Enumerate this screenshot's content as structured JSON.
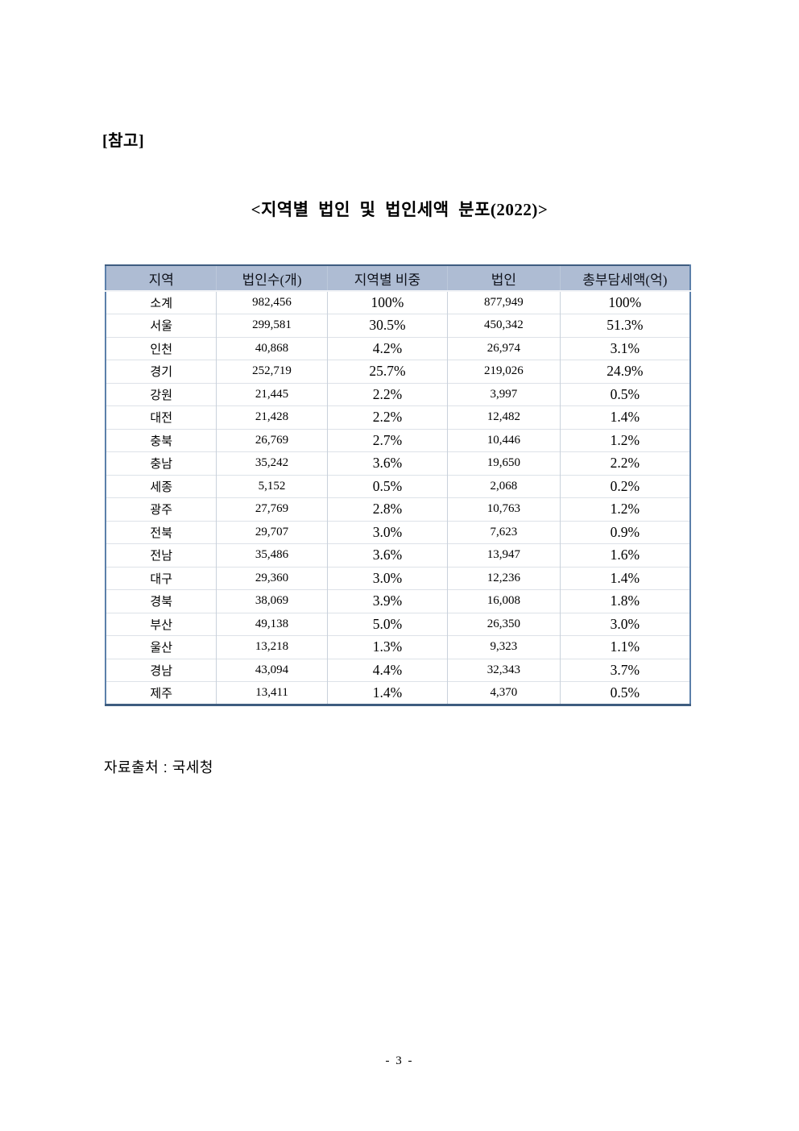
{
  "page": {
    "ref_label": "[참고]",
    "title": "<지역별 법인 및 법인세액 분포(2022)>",
    "source_note": "자료출처 : 국세청",
    "page_number": "- 3 -"
  },
  "table": {
    "headers": [
      "지역",
      "법인수(개)",
      "지역별 비중",
      "법인",
      "총부담세액(억)"
    ],
    "rows": [
      [
        "소계",
        "982,456",
        "100%",
        "877,949",
        "100%"
      ],
      [
        "서울",
        "299,581",
        "30.5%",
        "450,342",
        "51.3%"
      ],
      [
        "인천",
        "40,868",
        "4.2%",
        "26,974",
        "3.1%"
      ],
      [
        "경기",
        "252,719",
        "25.7%",
        "219,026",
        "24.9%"
      ],
      [
        "강원",
        "21,445",
        "2.2%",
        "3,997",
        "0.5%"
      ],
      [
        "대전",
        "21,428",
        "2.2%",
        "12,482",
        "1.4%"
      ],
      [
        "충북",
        "26,769",
        "2.7%",
        "10,446",
        "1.2%"
      ],
      [
        "충남",
        "35,242",
        "3.6%",
        "19,650",
        "2.2%"
      ],
      [
        "세종",
        "5,152",
        "0.5%",
        "2,068",
        "0.2%"
      ],
      [
        "광주",
        "27,769",
        "2.8%",
        "10,763",
        "1.2%"
      ],
      [
        "전북",
        "29,707",
        "3.0%",
        "7,623",
        "0.9%"
      ],
      [
        "전남",
        "35,486",
        "3.6%",
        "13,947",
        "1.6%"
      ],
      [
        "대구",
        "29,360",
        "3.0%",
        "12,236",
        "1.4%"
      ],
      [
        "경북",
        "38,069",
        "3.9%",
        "16,008",
        "1.8%"
      ],
      [
        "부산",
        "49,138",
        "5.0%",
        "26,350",
        "3.0%"
      ],
      [
        "울산",
        "13,218",
        "1.3%",
        "9,323",
        "1.1%"
      ],
      [
        "경남",
        "43,094",
        "4.4%",
        "32,343",
        "3.7%"
      ],
      [
        "제주",
        "13,411",
        "1.4%",
        "4,370",
        "0.5%"
      ]
    ],
    "percent_column_indexes": [
      2,
      4
    ]
  },
  "colors": {
    "header_bg": "#aebcd3",
    "outer_border": "#5c80aa",
    "outer_border_dark": "#3f5d80",
    "inner_line": "#c9d1db"
  }
}
